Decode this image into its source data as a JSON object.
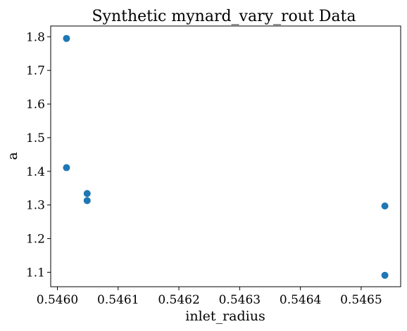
{
  "chart_data": {
    "type": "scatter",
    "title": "Synthetic mynard_vary_rout Data",
    "xlabel": "inlet_radius",
    "ylabel": "a",
    "xlim": [
      0.545989,
      0.546565
    ],
    "ylim": [
      1.057,
      1.832
    ],
    "x_ticks": [
      0.546,
      0.5461,
      0.5462,
      0.5463,
      0.5464,
      0.5465
    ],
    "x_tick_labels": [
      "0.5460",
      "0.5461",
      "0.5462",
      "0.5463",
      "0.5464",
      "0.5465"
    ],
    "y_ticks": [
      1.1,
      1.2,
      1.3,
      1.4,
      1.5,
      1.6,
      1.7,
      1.8
    ],
    "y_tick_labels": [
      "1.1",
      "1.2",
      "1.3",
      "1.4",
      "1.5",
      "1.6",
      "1.7",
      "1.8"
    ],
    "grid": false,
    "marker_color": "#1f77b4",
    "points": [
      {
        "x": 0.546015,
        "y": 1.795
      },
      {
        "x": 0.546015,
        "y": 1.411
      },
      {
        "x": 0.546049,
        "y": 1.334
      },
      {
        "x": 0.546049,
        "y": 1.313
      },
      {
        "x": 0.546539,
        "y": 1.297
      },
      {
        "x": 0.546539,
        "y": 1.091
      }
    ]
  }
}
